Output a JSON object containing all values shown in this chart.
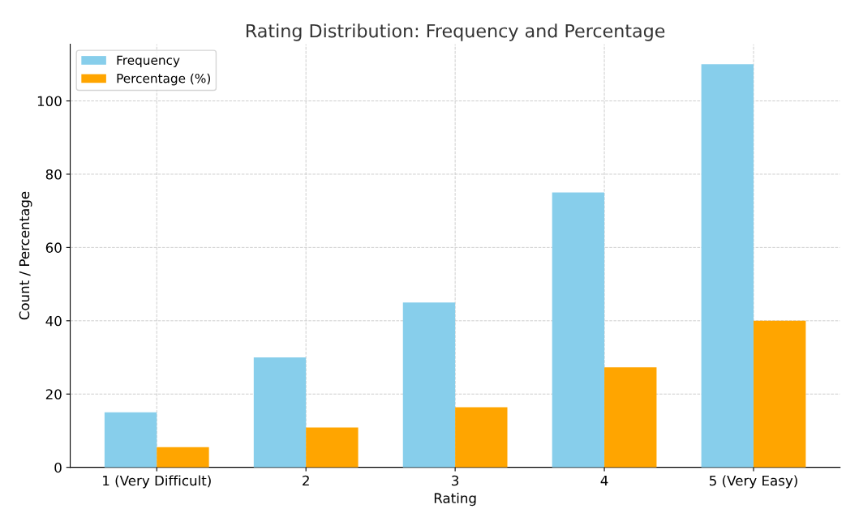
{
  "chart_data": {
    "type": "bar",
    "title": "Rating Distribution: Frequency and Percentage",
    "xlabel": "Rating",
    "ylabel": "Count / Percentage",
    "categories": [
      "1 (Very Difficult)",
      "2",
      "3",
      "4",
      "5 (Very Easy)"
    ],
    "series": [
      {
        "name": "Frequency",
        "color": "#87ceeb",
        "values": [
          15,
          30,
          45,
          75,
          110
        ]
      },
      {
        "name": "Percentage (%)",
        "color": "#ffa500",
        "values": [
          5.5,
          10.9,
          16.4,
          27.3,
          40
        ]
      }
    ],
    "ylim": [
      0,
      115.5
    ],
    "yticks": [
      0,
      20,
      40,
      60,
      80,
      100
    ],
    "grid": true,
    "legend": "top left"
  }
}
